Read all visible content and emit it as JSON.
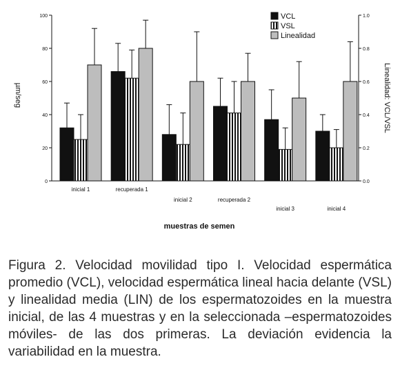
{
  "chart_data": {
    "type": "bar",
    "categories": [
      "inicial 1",
      "recuperada 1",
      "inicial 2",
      "recuperada 2",
      "inicial 3",
      "inicial 4"
    ],
    "series": [
      {
        "name": "VCL",
        "axis": "left",
        "values": [
          32,
          66,
          28,
          45,
          37,
          30
        ],
        "errors": [
          15,
          17,
          18,
          17,
          18,
          10
        ]
      },
      {
        "name": "VSL",
        "axis": "left",
        "values": [
          25,
          62,
          22,
          41,
          19,
          20
        ],
        "errors": [
          15,
          17,
          19,
          19,
          13,
          11
        ]
      },
      {
        "name": "Linealidad",
        "axis": "right",
        "values": [
          0.7,
          0.8,
          0.6,
          0.6,
          0.5,
          0.6
        ],
        "errors": [
          0.22,
          0.17,
          0.3,
          0.17,
          0.22,
          0.24
        ]
      }
    ],
    "xlabel": "muestras de semen",
    "ylabel": "µm/seg",
    "y2label": "Linealidad: VCL/VSL",
    "ylim": [
      0,
      100
    ],
    "yticks": [
      "0",
      "20",
      "40",
      "60",
      "80",
      "100"
    ],
    "y2lim": [
      0,
      1
    ],
    "y2ticks": [
      "0.0",
      "0.2",
      "0.4",
      "0.6",
      "0.8",
      "1.0"
    ],
    "legend_position": "top-right",
    "colors": {
      "VCL": "#111111",
      "VSL": "striped",
      "Linealidad": "#bdbdbd"
    }
  },
  "caption": "Figura 2. Velocidad movilidad tipo I. Velocidad espermática promedio (VCL), velocidad espermática lineal hacia delante (VSL) y linealidad media (LIN) de los espermatozoides en la muestra inicial, de las 4 muestras y en la seleccionada –espermatozoides móviles- de las dos primeras. La deviación evidencia la variabilidad en la muestra."
}
